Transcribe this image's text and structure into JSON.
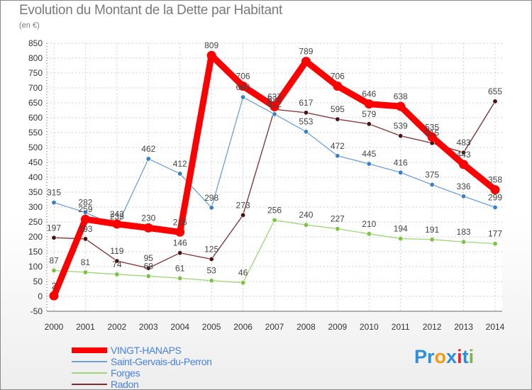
{
  "title": "Evolution du Montant de la Dette par Habitant",
  "unit": "(en €)",
  "brand": {
    "text": "Proxiti",
    "letters": [
      "P",
      "r",
      "o",
      "x",
      "i",
      "t",
      "i"
    ],
    "letter_colors": [
      "#2e8fd6",
      "#2e8fd6",
      "#f39c12",
      "#2e8fd6",
      "#e2272f",
      "#2e8fd6",
      "#7ab648"
    ]
  },
  "chart_data": {
    "type": "line",
    "title": "Evolution du Montant de la Dette par Habitant",
    "ylabel": "(en €)",
    "xlabel": "",
    "ylim": [
      -50,
      850
    ],
    "ytick_step": 50,
    "categories": [
      "2000",
      "2001",
      "2002",
      "2003",
      "2004",
      "2005",
      "2006",
      "2007",
      "2008",
      "2009",
      "2010",
      "2011",
      "2012",
      "2013",
      "2014"
    ],
    "series": [
      {
        "name": "Radon",
        "color": "#7b2d2d",
        "marker_color": "#4a1212",
        "values": [
          197,
          193,
          119,
          95,
          146,
          125,
          273,
          628,
          617,
          595,
          579,
          539,
          515,
          483,
          655
        ]
      },
      {
        "name": "Forges",
        "color": "#9ed47a",
        "marker_color": "#7cc243",
        "values": [
          87,
          81,
          74,
          68,
          61,
          53,
          46,
          256,
          240,
          227,
          210,
          194,
          191,
          183,
          177
        ]
      },
      {
        "name": "Saint-Gervais-du-Perron",
        "color": "#6fa0d6",
        "marker_color": "#3b7fc4",
        "values": [
          315,
          282,
          235,
          462,
          412,
          298,
          669,
          612,
          553,
          472,
          445,
          416,
          375,
          336,
          299
        ]
      },
      {
        "name": "VINGT-HANAPS",
        "color": "#ff0000",
        "marker_color": "#ff0000",
        "values": [
          2,
          259,
          243,
          230,
          216,
          809,
          706,
          637,
          789,
          706,
          646,
          638,
          535,
          443,
          358
        ]
      }
    ],
    "legend": [
      "VINGT-HANAPS",
      "Saint-Gervais-du-Perron",
      "Forges",
      "Radon"
    ],
    "legend_position": "bottom-left",
    "grid": true
  }
}
